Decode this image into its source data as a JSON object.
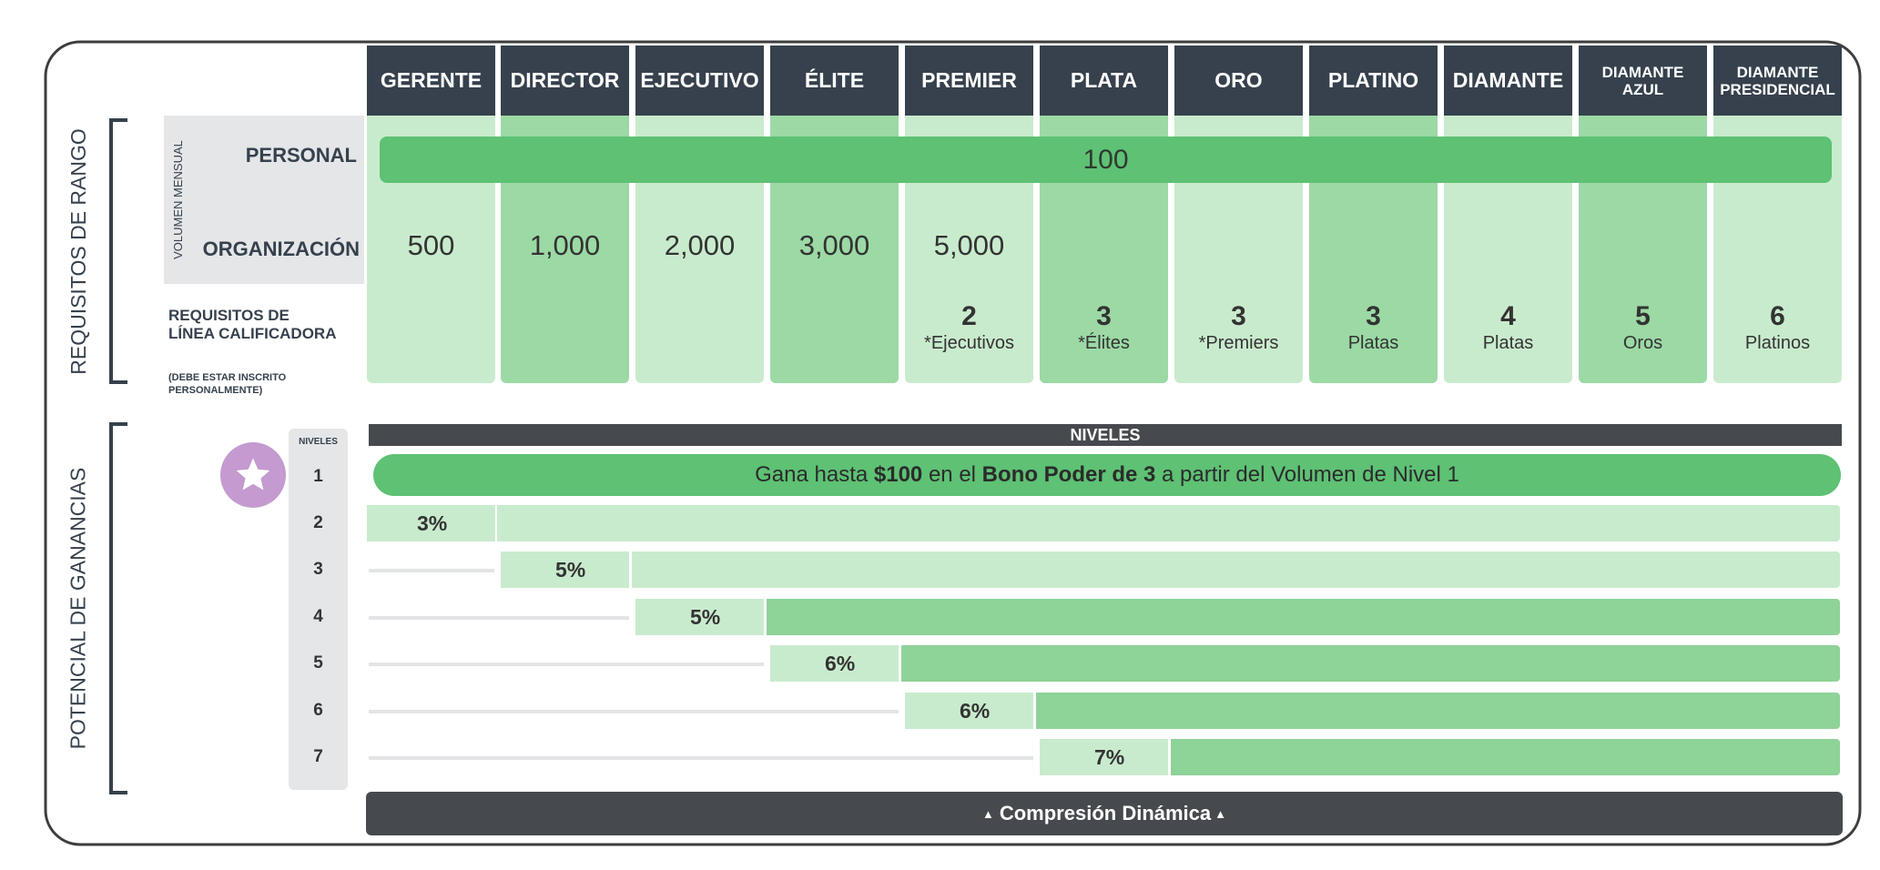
{
  "colors": {
    "header_dark": "#36414d",
    "col_light": "#c9ebcd",
    "col_dark": "#9cd9a5",
    "accent_green": "#5ec174",
    "level_bar_dark": "#8ed398",
    "star_badge": "#c49ad0",
    "bar_dark_gray": "#464a4e"
  },
  "ranks": [
    "GERENTE",
    "DIRECTOR",
    "EJECUTIVO",
    "ÉLITE",
    "PREMIER",
    "PLATA",
    "ORO",
    "PLATINO",
    "DIAMANTE",
    "DIAMANTE\nAZUL",
    "DIAMANTE\nPRESIDENCIAL"
  ],
  "section_labels": {
    "rank_requirements": "REQUISITOS DE RANGO",
    "earning_potential": "POTENCIAL DE GANANCIAS"
  },
  "volume": {
    "side_label": "VOLUMEN MENSUAL",
    "personal_label": "PERSONAL",
    "personal_value": "100",
    "organization_label": "ORGANIZACIÓN",
    "organization_values": [
      "500",
      "1,000",
      "2,000",
      "3,000",
      "5,000",
      "",
      "",
      "",
      "",
      "",
      ""
    ]
  },
  "qualifying": {
    "label": "REQUISITOS DE\nLÍNEA CALIFICADORA",
    "note": "(DEBE ESTAR INSCRITO\nPERSONALMENTE)",
    "values": [
      {
        "n": "",
        "w": ""
      },
      {
        "n": "",
        "w": ""
      },
      {
        "n": "",
        "w": ""
      },
      {
        "n": "",
        "w": ""
      },
      {
        "n": "2",
        "w": "*Ejecutivos"
      },
      {
        "n": "3",
        "w": "*Élites"
      },
      {
        "n": "3",
        "w": "*Premiers"
      },
      {
        "n": "3",
        "w": "Platas"
      },
      {
        "n": "4",
        "w": "Platas"
      },
      {
        "n": "5",
        "w": "Oros"
      },
      {
        "n": "6",
        "w": "Platinos"
      }
    ]
  },
  "levels": {
    "header": "NIVELES",
    "col_label": "NIVELES",
    "star_icon": "star-icon",
    "level1": {
      "num": "1",
      "pre": "Gana hasta ",
      "amount": "$100",
      "mid": " en el ",
      "bonus": "Bono Poder de 3",
      "post": " a partir del Volumen de Nivel 1"
    },
    "rows": [
      {
        "num": "2",
        "pct": "3%",
        "start": 0
      },
      {
        "num": "3",
        "pct": "5%",
        "start": 1
      },
      {
        "num": "4",
        "pct": "5%",
        "start": 2
      },
      {
        "num": "5",
        "pct": "6%",
        "start": 3
      },
      {
        "num": "6",
        "pct": "6%",
        "start": 4
      },
      {
        "num": "7",
        "pct": "7%",
        "start": 5
      }
    ]
  },
  "footer": {
    "compression": "Compresión Dinámica",
    "arrow_icon": "up-arrow-icon"
  }
}
